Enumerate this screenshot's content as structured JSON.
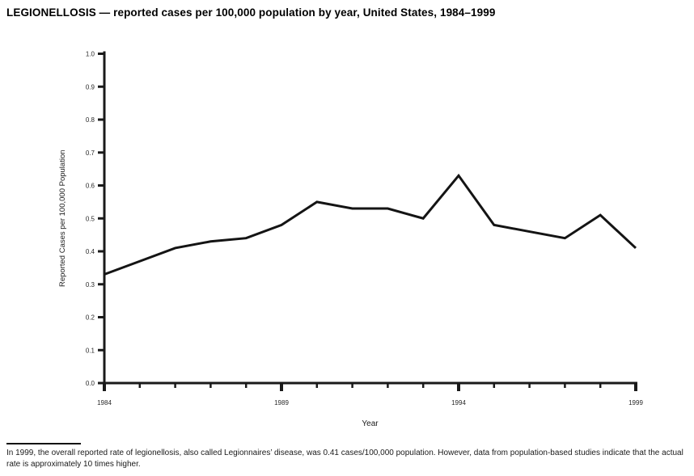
{
  "title": "LEGIONELLOSIS — reported cases per 100,000 population by year, United States, 1984–1999",
  "chart_data": {
    "type": "line",
    "x": [
      1984,
      1985,
      1986,
      1987,
      1988,
      1989,
      1990,
      1991,
      1992,
      1993,
      1994,
      1995,
      1996,
      1997,
      1998,
      1999
    ],
    "values": [
      0.33,
      0.37,
      0.41,
      0.43,
      0.44,
      0.48,
      0.55,
      0.53,
      0.53,
      0.5,
      0.63,
      0.48,
      0.46,
      0.44,
      0.51,
      0.41
    ],
    "title": "",
    "xlabel": "Year",
    "ylabel": "Reported Cases per 100,000 Population",
    "ylim": [
      0.0,
      1.0
    ],
    "ytick_step": 0.1,
    "xticks_labeled": [
      1984,
      1989,
      1994,
      1999
    ],
    "grid": false,
    "legend": "none",
    "line_color": "#141414",
    "axis_color": "#1a1a1a",
    "tick_label_color": "#2a2a2a"
  },
  "caption": {
    "text": "In 1999, the overall reported rate of legionellosis, also called Legionnaires’ disease, was 0.41 cases/100,000 population. However, data from population-based studies indicate that the actual rate is approximately 10 times higher."
  }
}
